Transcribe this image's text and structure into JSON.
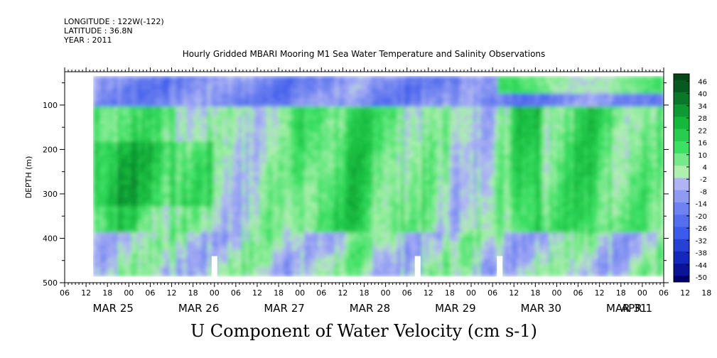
{
  "header": {
    "longitude": "LONGITUDE : 122W(-122)",
    "latitude": "LATITUDE : 36.8N",
    "year": "YEAR : 2011"
  },
  "title": "Hourly Gridded MBARI Mooring M1 Sea Water Temperature and Salinity Observations",
  "bottom_title": "U Component of Water Velocity (cm s-1)",
  "chart_data": {
    "type": "heatmap",
    "title": "Hourly Gridded MBARI Mooring M1 Sea Water Temperature and Salinity Observations",
    "variable": "U Component of Water Velocity (cm s-1)",
    "xlabel": "",
    "ylabel": "DEPTH (m)",
    "x_hour_ticks": [
      "06",
      "12",
      "18",
      "00",
      "06",
      "12",
      "18",
      "00",
      "06",
      "12",
      "18",
      "00",
      "06",
      "12",
      "18",
      "00",
      "06",
      "12",
      "18",
      "00",
      "06",
      "12",
      "18",
      "00",
      "06",
      "12",
      "18",
      "00",
      "06",
      "12",
      "18",
      "00",
      "06"
    ],
    "x_day_labels": [
      "MAR 25",
      "MAR 26",
      "MAR 27",
      "MAR 28",
      "MAR 29",
      "MAR 30",
      "MAR 31",
      "APR 1"
    ],
    "x_range": [
      "2011-03-25 06:00",
      "2011-04-01 06:00"
    ],
    "data_start": "2011-03-25 14:00",
    "y_ticks": [
      100,
      200,
      300,
      400,
      500
    ],
    "ylim": [
      500,
      25
    ],
    "data_depth_range": [
      35,
      485
    ],
    "colorbar_levels": [
      46,
      40,
      34,
      28,
      22,
      16,
      10,
      4,
      -2,
      -8,
      -14,
      -20,
      -26,
      -32,
      -38,
      -44,
      -50
    ],
    "colorbar_range": [
      -50,
      50
    ],
    "colors": {
      "strong_positive": "#0a5a1e",
      "positive": "#22dd55",
      "weak_positive": "#a8f0a8",
      "weak_negative": "#b4b4f4",
      "negative": "#7878ec",
      "strong_negative": "#000080"
    },
    "description_pattern": [
      {
        "depth_range": [
          35,
          100
        ],
        "sign": "negative",
        "note": "mostly negative (blue) near surface, strongest late MAR 25 - MAR 27 and MAR 29"
      },
      {
        "depth_range": [
          150,
          350
        ],
        "sign": "positive",
        "note": "broad positive (green) core, strongest MAR 25 - MAR 26 and around MAR 30 06"
      },
      {
        "depth_range": [
          400,
          485
        ],
        "sign": "mixed",
        "note": "alternating weak negative and positive near bottom"
      },
      {
        "depth_range": [
          35,
          70
        ],
        "sign": "positive",
        "note": "near-surface positive after MAR 30 06"
      }
    ],
    "missing_data_times": [
      "2011-03-27 00:00",
      "2011-03-29 09:00",
      "2011-03-30 08:00"
    ]
  }
}
